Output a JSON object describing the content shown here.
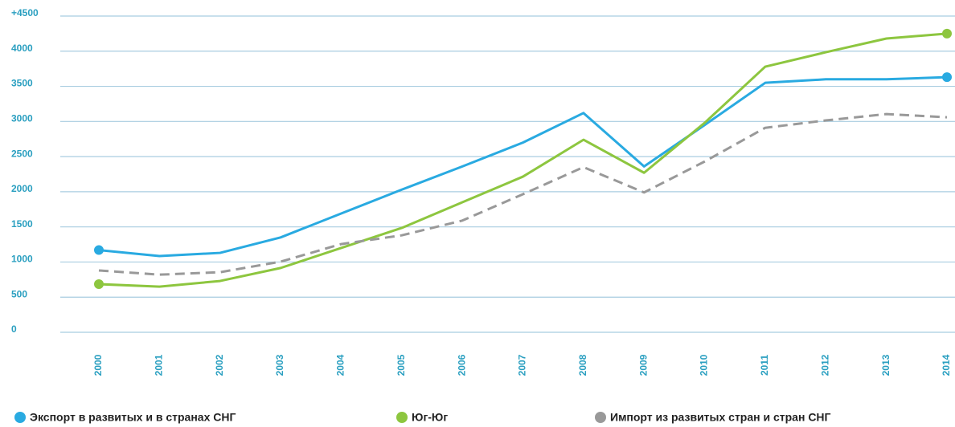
{
  "chart_data": {
    "type": "line",
    "categories": [
      "2000",
      "2001",
      "2002",
      "2003",
      "2004",
      "2005",
      "2006",
      "2007",
      "2008",
      "2009",
      "2010",
      "2011",
      "2012",
      "2013",
      "2014"
    ],
    "series": [
      {
        "name": "Экспорт в развитых и в странах СНГ",
        "color": "#29aae1",
        "dashed": false,
        "end_markers": true,
        "values": [
          1170,
          1085,
          1130,
          1350,
          1690,
          2030,
          2360,
          2700,
          3120,
          2360,
          2950,
          3550,
          3600,
          3600,
          3630
        ]
      },
      {
        "name": "Юг-Юг",
        "color": "#8dc63f",
        "dashed": false,
        "end_markers": true,
        "values": [
          685,
          650,
          730,
          915,
          1200,
          1485,
          1850,
          2215,
          2740,
          2270,
          2980,
          3780,
          3985,
          4180,
          4250
        ]
      },
      {
        "name": "Импорт из развитых стран и стран СНГ",
        "color": "#999999",
        "dashed": true,
        "end_markers": false,
        "values": [
          880,
          820,
          855,
          1005,
          1255,
          1380,
          1590,
          1965,
          2350,
          1990,
          2430,
          2910,
          3015,
          3105,
          3060
        ]
      }
    ],
    "ylim": [
      0,
      4500
    ],
    "yticks": [
      0,
      500,
      1000,
      1500,
      2000,
      2500,
      3000,
      3500,
      4000,
      {
        "value": 4500,
        "label": "+4500"
      }
    ],
    "grid": true
  }
}
